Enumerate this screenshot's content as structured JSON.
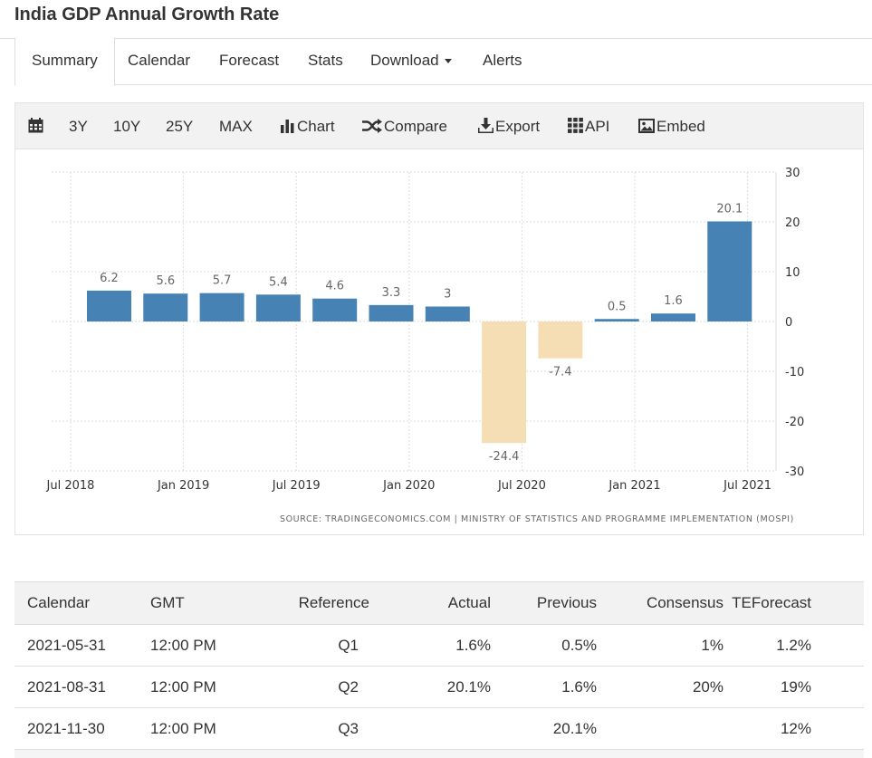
{
  "page": {
    "title": "India GDP Annual Growth Rate"
  },
  "tabs": [
    {
      "label": "Summary",
      "active": true
    },
    {
      "label": "Calendar"
    },
    {
      "label": "Forecast"
    },
    {
      "label": "Stats"
    },
    {
      "label": "Download",
      "dropdown": true
    },
    {
      "label": "Alerts"
    }
  ],
  "toolbar": {
    "calendar_icon": "calendar-icon",
    "ranges": [
      "3Y",
      "10Y",
      "25Y",
      "MAX"
    ],
    "chart_label": "Chart",
    "compare_label": "Compare",
    "export_label": "Export",
    "api_label": "API",
    "embed_label": "Embed"
  },
  "colors": {
    "positive_bar": "#4682b4",
    "negative_bar": "#f5deb3",
    "grid": "#dddddd",
    "text": "#333333"
  },
  "chart_data": {
    "type": "bar",
    "source": "SOURCE: TRADINGECONOMICS.COM  |  MINISTRY OF STATISTICS AND PROGRAMME IMPLEMENTATION (MOSPI)",
    "categories": [
      "Jul 2018",
      "Oct 2018",
      "Jan 2019",
      "Apr 2019",
      "Jul 2019",
      "Oct 2019",
      "Jan 2020",
      "Apr 2020",
      "Jul 2020",
      "Oct 2020",
      "Jan 2021",
      "Apr 2021"
    ],
    "values": [
      6.2,
      5.6,
      5.7,
      5.4,
      4.6,
      3.3,
      3,
      -24.4,
      -7.4,
      0.5,
      1.6,
      20.1
    ],
    "value_labels": [
      "6.2",
      "5.6",
      "5.7",
      "5.4",
      "4.6",
      "3.3",
      "3",
      "-24.4",
      "-7.4",
      "0.5",
      "1.6",
      "20.1"
    ],
    "x_ticks": [
      "Jul 2018",
      "Jan 2019",
      "Jul 2019",
      "Jan 2020",
      "Jul 2020",
      "Jan 2021",
      "Jul 2021"
    ],
    "y_ticks": [
      30,
      20,
      10,
      0,
      -10,
      -20,
      -30
    ],
    "ylim": [
      -30,
      30
    ],
    "y_axis_side": "right",
    "grid": true
  },
  "calendar_table": {
    "headers": [
      "Calendar",
      "GMT",
      "Reference",
      "Actual",
      "Previous",
      "Consensus",
      "TEForecast"
    ],
    "rows": [
      [
        "2021-05-31",
        "12:00 PM",
        "Q1",
        "1.6%",
        "0.5%",
        "1%",
        "1.2%"
      ],
      [
        "2021-08-31",
        "12:00 PM",
        "Q2",
        "20.1%",
        "1.6%",
        "20%",
        "19%"
      ],
      [
        "2021-11-30",
        "12:00 PM",
        "Q3",
        "",
        "20.1%",
        "",
        "12%"
      ]
    ]
  }
}
